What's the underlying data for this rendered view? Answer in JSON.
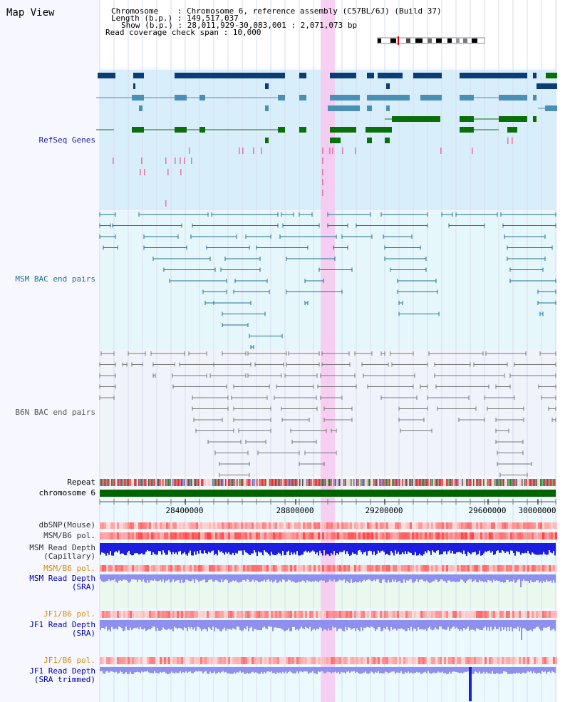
{
  "panel_title": "Map View",
  "info": {
    "chromosome": "Chromosome    : Chromosome 6, reference assembly (C57BL/6J) (Build 37)",
    "length": "Length (b.p.) : 149,517,037",
    "show": "Show (b.p.) : 28,011,929-30,083,001 : 2,071,073 bp",
    "coverage": "Read coverage check span : 10,000"
  },
  "tracks": {
    "refseq": "RefSeq Genes",
    "msm_bac": "MSM BAC end pairs",
    "b6n_bac": "B6N BAC end pairs",
    "repeat": "Repeat",
    "chromosome": "chromosome 6",
    "dbsnp": "dbSNP(Mouse)",
    "msm_b6_pol_1": "MSM/B6 pol.",
    "msm_depth_cap_1": "MSM Read Depth",
    "msm_depth_cap_2": "(Capillary)",
    "msm_b6_pol_2": "MSM/B6 pol.",
    "msm_depth_sra_1": "MSM Read Depth",
    "msm_depth_sra_2": "(SRA)",
    "jf1_b6_pol_1": "JF1/B6 pol.",
    "jf1_depth_sra_1": "JF1 Read Depth",
    "jf1_depth_sra_2": "(SRA)",
    "jf1_b6_pol_2": "JF1/B6 pol.",
    "jf1_depth_trim_1": "JF1 Read Depth",
    "jf1_depth_trim_2": "(SRA trimmed)"
  },
  "axis_ticks": [
    "28400000",
    "28800000",
    "29200000",
    "29600000",
    "30000000"
  ],
  "colors": {
    "gene_dark": "#0b3c74",
    "gene_mid": "#4a8fb5",
    "gene_green": "#0a6e0a",
    "msm_bac": "#1f6f8f",
    "b6n_bac": "#777777",
    "chromosome_bar": "#006400",
    "depth_blue": "#1d1de0",
    "depth_light": "#8f8ff0",
    "pol_red": "#e83030",
    "highlight": "#f7c8f0"
  }
}
